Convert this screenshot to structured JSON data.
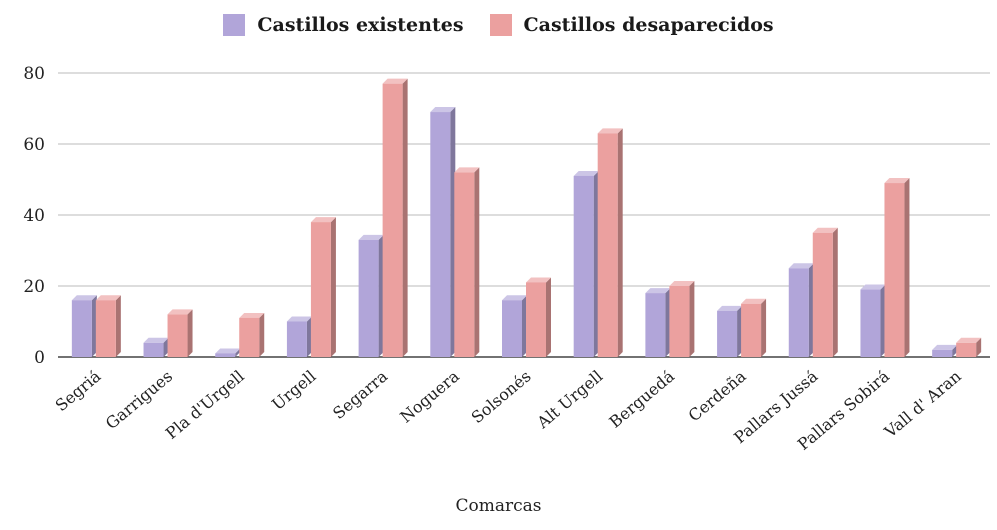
{
  "chart_data": {
    "type": "bar",
    "title": "",
    "xlabel": "Comarcas",
    "ylabel": "",
    "ylim": [
      0,
      80
    ],
    "yticks": [
      0,
      20,
      40,
      60,
      80
    ],
    "grid": true,
    "legend_position": "top-center",
    "categories": [
      "Segriá",
      "Garrigues",
      "Pla d'Urgell",
      "Urgell",
      "Segarra",
      "Noguera",
      "Solsonés",
      "Alt Urgell",
      "Berguedá",
      "Cerdeña",
      "Pallars Jussá",
      "Pallars Sobirá",
      "Vall d' Aran"
    ],
    "series": [
      {
        "name": "Castillos existentes",
        "color": "#b1a5d9",
        "values": [
          16,
          4,
          1,
          10,
          33,
          69,
          16,
          51,
          18,
          13,
          25,
          19,
          2
        ]
      },
      {
        "name": "Castillos desaparecidos",
        "color": "#eba09f",
        "values": [
          16,
          12,
          11,
          38,
          77,
          52,
          21,
          63,
          20,
          15,
          35,
          49,
          4
        ]
      }
    ]
  }
}
